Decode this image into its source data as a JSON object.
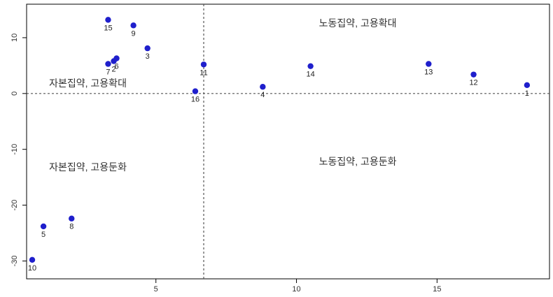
{
  "chart_data": {
    "type": "scatter",
    "title": "",
    "xlabel": "",
    "ylabel": "",
    "xlim": [
      0.4,
      19.0
    ],
    "ylim": [
      -33.2,
      16.0
    ],
    "x_ticks": [
      5,
      10,
      15
    ],
    "y_ticks": [
      10,
      0,
      -10,
      -20,
      -30
    ],
    "grid": false,
    "point_color": "#1f1fcc",
    "refline_color": "#555555",
    "ref_lines": {
      "x": 6.7,
      "y": 0
    },
    "points": [
      {
        "label": "1",
        "x": 18.2,
        "y": 1.5
      },
      {
        "label": "2",
        "x": 3.5,
        "y": 5.8
      },
      {
        "label": "3",
        "x": 4.7,
        "y": 8.1
      },
      {
        "label": "4",
        "x": 8.8,
        "y": 1.2
      },
      {
        "label": "5",
        "x": 1.0,
        "y": -23.8
      },
      {
        "label": "6",
        "x": 3.6,
        "y": 6.3
      },
      {
        "label": "7",
        "x": 3.3,
        "y": 5.3
      },
      {
        "label": "8",
        "x": 2.0,
        "y": -22.4
      },
      {
        "label": "9",
        "x": 4.2,
        "y": 12.2
      },
      {
        "label": "10",
        "x": 0.6,
        "y": -29.8
      },
      {
        "label": "11",
        "x": 6.7,
        "y": 5.2
      },
      {
        "label": "12",
        "x": 16.3,
        "y": 3.4
      },
      {
        "label": "13",
        "x": 14.7,
        "y": 5.3
      },
      {
        "label": "14",
        "x": 10.5,
        "y": 4.9
      },
      {
        "label": "15",
        "x": 3.3,
        "y": 13.2
      },
      {
        "label": "16",
        "x": 6.4,
        "y": 0.4
      }
    ],
    "annotations": [
      {
        "text": "노동집약, 고용확대",
        "x": 10.8,
        "y": 12.0
      },
      {
        "text": "자본집약, 고용확대",
        "x": 1.2,
        "y": 1.2
      },
      {
        "text": "자본집약, 고용둔화",
        "x": 1.2,
        "y": -13.8
      },
      {
        "text": "노동집약, 고용둔화",
        "x": 10.8,
        "y": -12.8
      }
    ]
  }
}
